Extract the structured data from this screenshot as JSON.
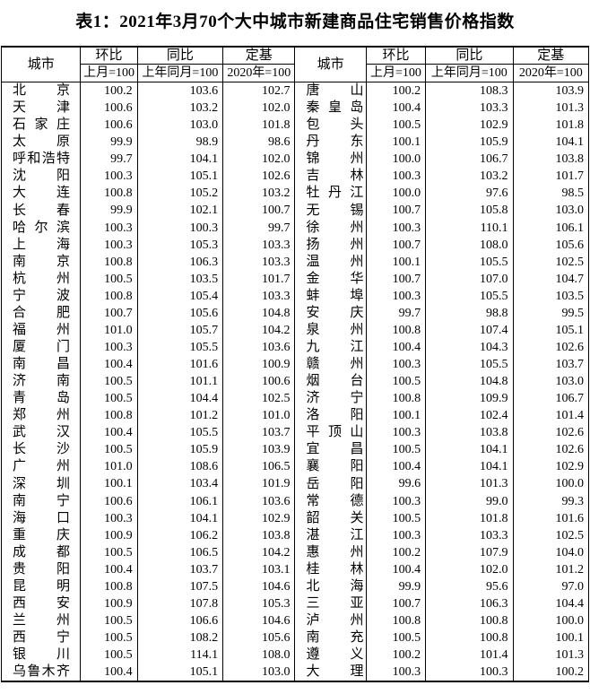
{
  "title": "表1：2021年3月70个大中城市新建商品住宅销售价格指数",
  "colors": {
    "text": "#000000",
    "border": "#000000",
    "background": "#ffffff"
  },
  "table": {
    "header": {
      "city": "城市",
      "columns": [
        {
          "label": "环比",
          "sub": "上月=100"
        },
        {
          "label": "同比",
          "sub": "上年同月=100"
        },
        {
          "label": "定基",
          "sub": "2020年=100"
        }
      ]
    },
    "left_rows": [
      {
        "city": "北京",
        "mom": "100.2",
        "yoy": "103.6",
        "base": "102.7"
      },
      {
        "city": "天津",
        "mom": "100.6",
        "yoy": "103.2",
        "base": "102.0"
      },
      {
        "city": "石家庄",
        "mom": "100.6",
        "yoy": "103.0",
        "base": "101.8"
      },
      {
        "city": "太原",
        "mom": "99.9",
        "yoy": "98.9",
        "base": "98.6"
      },
      {
        "city": "呼和浩特",
        "mom": "99.7",
        "yoy": "104.1",
        "base": "102.0"
      },
      {
        "city": "沈阳",
        "mom": "100.3",
        "yoy": "105.1",
        "base": "102.6"
      },
      {
        "city": "大连",
        "mom": "100.8",
        "yoy": "105.2",
        "base": "103.2"
      },
      {
        "city": "长春",
        "mom": "99.9",
        "yoy": "102.1",
        "base": "100.7"
      },
      {
        "city": "哈尔滨",
        "mom": "100.3",
        "yoy": "100.3",
        "base": "99.7"
      },
      {
        "city": "上海",
        "mom": "100.3",
        "yoy": "105.3",
        "base": "103.3"
      },
      {
        "city": "南京",
        "mom": "100.8",
        "yoy": "106.3",
        "base": "103.3"
      },
      {
        "city": "杭州",
        "mom": "100.5",
        "yoy": "103.5",
        "base": "101.7"
      },
      {
        "city": "宁波",
        "mom": "100.8",
        "yoy": "105.4",
        "base": "103.3"
      },
      {
        "city": "合肥",
        "mom": "100.7",
        "yoy": "105.6",
        "base": "104.8"
      },
      {
        "city": "福州",
        "mom": "101.0",
        "yoy": "105.7",
        "base": "104.2"
      },
      {
        "city": "厦门",
        "mom": "100.3",
        "yoy": "105.5",
        "base": "103.6"
      },
      {
        "city": "南昌",
        "mom": "100.4",
        "yoy": "101.6",
        "base": "100.9"
      },
      {
        "city": "济南",
        "mom": "100.5",
        "yoy": "101.1",
        "base": "100.6"
      },
      {
        "city": "青岛",
        "mom": "100.5",
        "yoy": "104.4",
        "base": "102.5"
      },
      {
        "city": "郑州",
        "mom": "100.8",
        "yoy": "101.2",
        "base": "101.0"
      },
      {
        "city": "武汉",
        "mom": "100.4",
        "yoy": "105.5",
        "base": "103.7"
      },
      {
        "city": "长沙",
        "mom": "100.5",
        "yoy": "105.9",
        "base": "103.9"
      },
      {
        "city": "广州",
        "mom": "101.0",
        "yoy": "108.6",
        "base": "106.5"
      },
      {
        "city": "深圳",
        "mom": "100.1",
        "yoy": "103.4",
        "base": "101.9"
      },
      {
        "city": "南宁",
        "mom": "100.6",
        "yoy": "106.1",
        "base": "103.6"
      },
      {
        "city": "海口",
        "mom": "100.3",
        "yoy": "104.1",
        "base": "102.9"
      },
      {
        "city": "重庆",
        "mom": "100.9",
        "yoy": "106.2",
        "base": "103.8"
      },
      {
        "city": "成都",
        "mom": "100.5",
        "yoy": "106.5",
        "base": "104.2"
      },
      {
        "city": "贵阳",
        "mom": "100.4",
        "yoy": "103.7",
        "base": "103.1"
      },
      {
        "city": "昆明",
        "mom": "100.8",
        "yoy": "107.5",
        "base": "104.6"
      },
      {
        "city": "西安",
        "mom": "100.9",
        "yoy": "107.8",
        "base": "105.3"
      },
      {
        "city": "兰州",
        "mom": "100.5",
        "yoy": "106.6",
        "base": "104.6"
      },
      {
        "city": "西宁",
        "mom": "100.5",
        "yoy": "108.2",
        "base": "105.6"
      },
      {
        "city": "银川",
        "mom": "100.5",
        "yoy": "114.1",
        "base": "108.0"
      },
      {
        "city": "乌鲁木齐",
        "mom": "100.4",
        "yoy": "105.1",
        "base": "103.0"
      }
    ],
    "right_rows": [
      {
        "city": "唐山",
        "mom": "100.2",
        "yoy": "108.3",
        "base": "103.9"
      },
      {
        "city": "秦皇岛",
        "mom": "100.4",
        "yoy": "103.3",
        "base": "101.3"
      },
      {
        "city": "包头",
        "mom": "100.5",
        "yoy": "102.9",
        "base": "101.8"
      },
      {
        "city": "丹东",
        "mom": "100.1",
        "yoy": "105.9",
        "base": "104.1"
      },
      {
        "city": "锦州",
        "mom": "100.0",
        "yoy": "106.7",
        "base": "103.8"
      },
      {
        "city": "吉林",
        "mom": "100.3",
        "yoy": "103.2",
        "base": "101.7"
      },
      {
        "city": "牡丹江",
        "mom": "100.0",
        "yoy": "97.6",
        "base": "98.5"
      },
      {
        "city": "无锡",
        "mom": "100.7",
        "yoy": "105.8",
        "base": "103.0"
      },
      {
        "city": "徐州",
        "mom": "100.3",
        "yoy": "110.1",
        "base": "106.1"
      },
      {
        "city": "扬州",
        "mom": "100.7",
        "yoy": "108.0",
        "base": "105.6"
      },
      {
        "city": "温州",
        "mom": "100.1",
        "yoy": "105.5",
        "base": "102.5"
      },
      {
        "city": "金华",
        "mom": "100.7",
        "yoy": "107.0",
        "base": "104.7"
      },
      {
        "city": "蚌埠",
        "mom": "100.3",
        "yoy": "105.5",
        "base": "103.5"
      },
      {
        "city": "安庆",
        "mom": "99.7",
        "yoy": "98.8",
        "base": "99.5"
      },
      {
        "city": "泉州",
        "mom": "100.8",
        "yoy": "107.4",
        "base": "105.1"
      },
      {
        "city": "九江",
        "mom": "100.4",
        "yoy": "104.3",
        "base": "102.6"
      },
      {
        "city": "赣州",
        "mom": "100.3",
        "yoy": "105.5",
        "base": "103.7"
      },
      {
        "city": "烟台",
        "mom": "100.5",
        "yoy": "104.8",
        "base": "103.0"
      },
      {
        "city": "济宁",
        "mom": "100.8",
        "yoy": "109.9",
        "base": "106.7"
      },
      {
        "city": "洛阳",
        "mom": "100.1",
        "yoy": "102.4",
        "base": "101.4"
      },
      {
        "city": "平顶山",
        "mom": "100.3",
        "yoy": "103.8",
        "base": "102.6"
      },
      {
        "city": "宜昌",
        "mom": "100.5",
        "yoy": "104.1",
        "base": "102.6"
      },
      {
        "city": "襄阳",
        "mom": "100.4",
        "yoy": "104.1",
        "base": "102.9"
      },
      {
        "city": "岳阳",
        "mom": "99.6",
        "yoy": "101.3",
        "base": "100.0"
      },
      {
        "city": "常德",
        "mom": "100.3",
        "yoy": "99.0",
        "base": "99.3"
      },
      {
        "city": "韶关",
        "mom": "100.5",
        "yoy": "101.8",
        "base": "101.6"
      },
      {
        "city": "湛江",
        "mom": "100.3",
        "yoy": "103.3",
        "base": "102.5"
      },
      {
        "city": "惠州",
        "mom": "100.2",
        "yoy": "107.9",
        "base": "104.0"
      },
      {
        "city": "桂林",
        "mom": "100.4",
        "yoy": "102.0",
        "base": "101.2"
      },
      {
        "city": "北海",
        "mom": "99.9",
        "yoy": "95.6",
        "base": "97.0"
      },
      {
        "city": "三亚",
        "mom": "100.7",
        "yoy": "106.3",
        "base": "104.4"
      },
      {
        "city": "泸州",
        "mom": "100.8",
        "yoy": "100.8",
        "base": "100.0"
      },
      {
        "city": "南充",
        "mom": "100.5",
        "yoy": "100.8",
        "base": "100.1"
      },
      {
        "city": "遵义",
        "mom": "100.2",
        "yoy": "101.4",
        "base": "101.3"
      },
      {
        "city": "大理",
        "mom": "100.3",
        "yoy": "100.3",
        "base": "100.2"
      }
    ]
  }
}
